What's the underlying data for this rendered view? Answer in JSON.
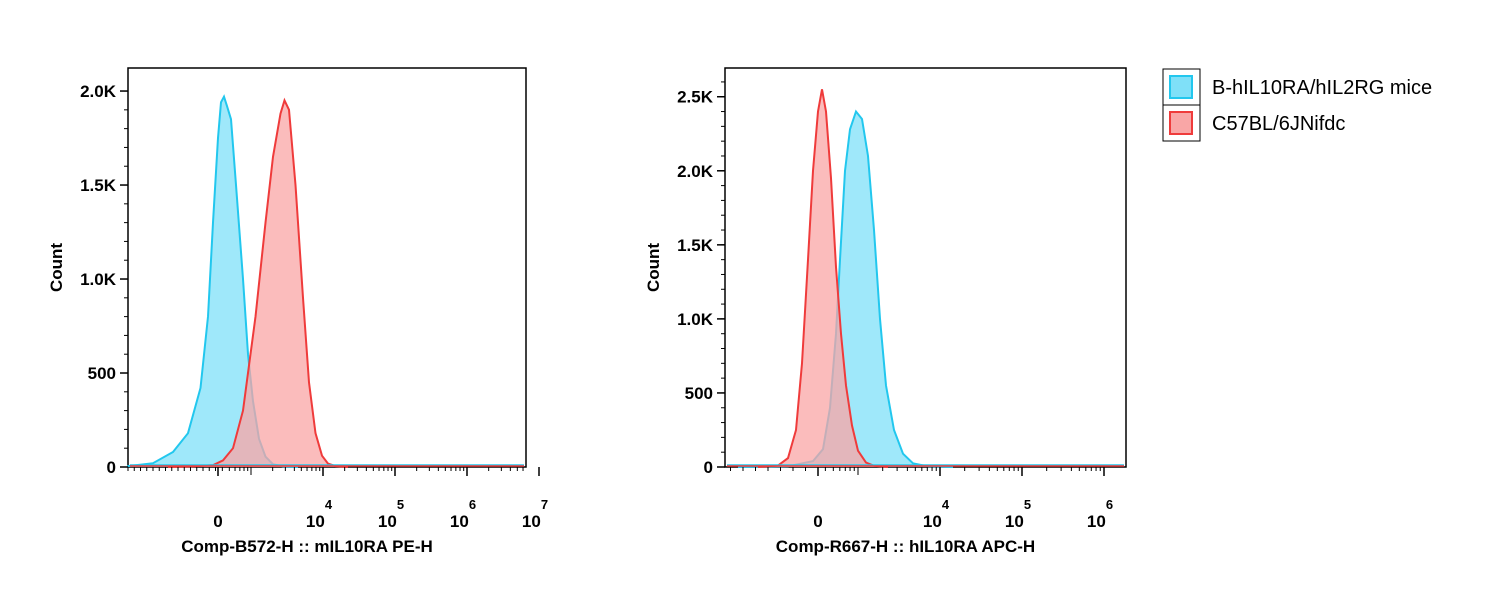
{
  "chart_data": [
    {
      "type": "area",
      "title": "",
      "xlabel": "Comp-B572-H :: mIL10RA PE-H",
      "ylabel": "Count",
      "y_ticks": [
        {
          "value": 0,
          "label": "0"
        },
        {
          "value": 500,
          "label": "500"
        },
        {
          "value": 1000,
          "label": "1.0K"
        },
        {
          "value": 1500,
          "label": "1.5K"
        },
        {
          "value": 2000,
          "label": "2.0K"
        }
      ],
      "ylim": [
        0,
        2080
      ],
      "x_scale": "biexponential",
      "x_ticks": [
        {
          "value": 0,
          "base": "0",
          "exp": ""
        },
        {
          "value": 10000,
          "base": "10",
          "exp": "4"
        },
        {
          "value": 100000,
          "base": "10",
          "exp": "5"
        },
        {
          "value": 1000000,
          "base": "10",
          "exp": "6"
        },
        {
          "value": 10000000,
          "base": "10",
          "exp": "7"
        }
      ],
      "series": [
        {
          "name": "B-hIL10RA/hIL2RG mice",
          "color": "#22c7ee",
          "fill": "#7fe0f8",
          "points": [
            [
              -2.3,
              2
            ],
            [
              -1.8,
              5
            ],
            [
              -1.3,
              20
            ],
            [
              -0.9,
              80
            ],
            [
              -0.6,
              180
            ],
            [
              -0.35,
              420
            ],
            [
              -0.2,
              800
            ],
            [
              -0.1,
              1300
            ],
            [
              0.0,
              1750
            ],
            [
              0.06,
              1940
            ],
            [
              0.12,
              1970
            ],
            [
              0.18,
              1920
            ],
            [
              0.26,
              1850
            ],
            [
              0.36,
              1500
            ],
            [
              0.5,
              1000
            ],
            [
              0.6,
              600
            ],
            [
              0.7,
              350
            ],
            [
              0.82,
              150
            ],
            [
              0.95,
              55
            ],
            [
              1.1,
              15
            ],
            [
              1.3,
              3
            ],
            [
              1.6,
              0
            ]
          ]
        },
        {
          "name": "C57BL/6JNifdc",
          "color": "#ef3b3b",
          "fill": "#f9a6a6",
          "points": [
            [
              -1.0,
              0
            ],
            [
              -0.5,
              3
            ],
            [
              -0.1,
              10
            ],
            [
              0.1,
              35
            ],
            [
              0.3,
              100
            ],
            [
              0.5,
              300
            ],
            [
              0.75,
              800
            ],
            [
              0.95,
              1300
            ],
            [
              1.1,
              1650
            ],
            [
              1.25,
              1880
            ],
            [
              1.33,
              1950
            ],
            [
              1.42,
              1900
            ],
            [
              1.55,
              1500
            ],
            [
              1.7,
              900
            ],
            [
              1.82,
              450
            ],
            [
              1.95,
              180
            ],
            [
              2.08,
              60
            ],
            [
              2.2,
              18
            ],
            [
              2.35,
              5
            ],
            [
              2.6,
              0
            ]
          ]
        }
      ]
    },
    {
      "type": "area",
      "title": "",
      "xlabel": "Comp-R667-H :: hIL10RA APC-H",
      "ylabel": "Count",
      "y_ticks": [
        {
          "value": 0,
          "label": "0"
        },
        {
          "value": 500,
          "label": "500"
        },
        {
          "value": 1000,
          "label": "1.0K"
        },
        {
          "value": 1500,
          "label": "1.5K"
        },
        {
          "value": 2000,
          "label": "2.0K"
        },
        {
          "value": 2500,
          "label": "2.5K"
        }
      ],
      "ylim": [
        0,
        2640
      ],
      "x_scale": "biexponential",
      "x_ticks": [
        {
          "value": 0,
          "base": "0",
          "exp": ""
        },
        {
          "value": 10000,
          "base": "10",
          "exp": "4"
        },
        {
          "value": 100000,
          "base": "10",
          "exp": "5"
        },
        {
          "value": 1000000,
          "base": "10",
          "exp": "6"
        }
      ],
      "series": [
        {
          "name": "B-hIL10RA/hIL2RG mice",
          "color": "#22c7ee",
          "fill": "#7fe0f8",
          "points": [
            [
              -0.8,
              0
            ],
            [
              -0.3,
              5
            ],
            [
              -0.05,
              40
            ],
            [
              0.05,
              120
            ],
            [
              0.12,
              400
            ],
            [
              0.18,
              900
            ],
            [
              0.22,
              1400
            ],
            [
              0.27,
              2000
            ],
            [
              0.32,
              2280
            ],
            [
              0.38,
              2400
            ],
            [
              0.44,
              2350
            ],
            [
              0.5,
              2100
            ],
            [
              0.56,
              1600
            ],
            [
              0.62,
              1000
            ],
            [
              0.68,
              550
            ],
            [
              0.76,
              250
            ],
            [
              0.85,
              90
            ],
            [
              0.95,
              25
            ],
            [
              1.1,
              5
            ],
            [
              1.35,
              0
            ]
          ]
        },
        {
          "name": "C57BL/6JNifdc",
          "color": "#ef3b3b",
          "fill": "#f9a6a6",
          "points": [
            [
              -0.6,
              0
            ],
            [
              -0.4,
              10
            ],
            [
              -0.3,
              60
            ],
            [
              -0.22,
              250
            ],
            [
              -0.16,
              700
            ],
            [
              -0.1,
              1400
            ],
            [
              -0.05,
              2000
            ],
            [
              0.0,
              2400
            ],
            [
              0.04,
              2550
            ],
            [
              0.08,
              2400
            ],
            [
              0.13,
              1950
            ],
            [
              0.18,
              1350
            ],
            [
              0.23,
              900
            ],
            [
              0.28,
              550
            ],
            [
              0.34,
              280
            ],
            [
              0.4,
              110
            ],
            [
              0.48,
              30
            ],
            [
              0.56,
              8
            ],
            [
              0.7,
              0
            ]
          ]
        }
      ]
    }
  ],
  "legend": {
    "items": [
      {
        "label": "B-hIL10RA/hIL2RG mice",
        "color": "#22c7ee",
        "fill": "#7fe0f8"
      },
      {
        "label": "C57BL/6JNifdc",
        "color": "#ef3b3b",
        "fill": "#f9a6a6"
      }
    ]
  }
}
